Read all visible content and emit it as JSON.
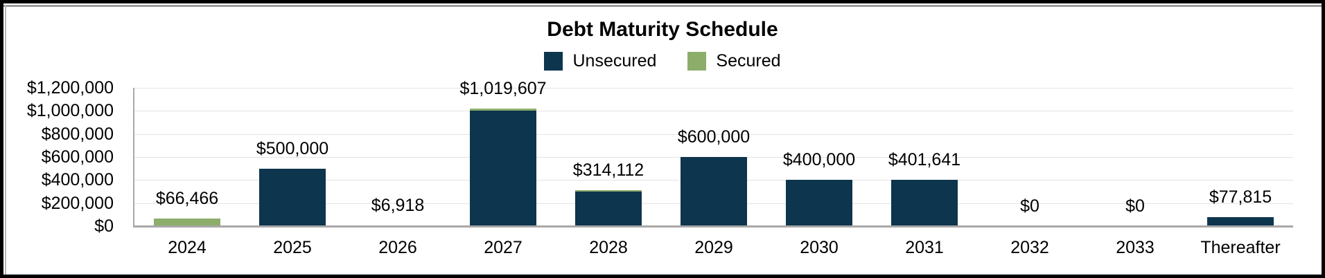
{
  "title": "Debt Maturity Schedule",
  "legend": {
    "items": [
      {
        "label": "Unsecured",
        "color": "#0d354d"
      },
      {
        "label": "Secured",
        "color": "#8dad6b"
      }
    ]
  },
  "colors": {
    "unsecured": "#0d354d",
    "secured": "#8dad6b",
    "gridline": "#e3e3e3",
    "axis": "#a8a8a8",
    "frame_border": "#000000",
    "background": "#ffffff",
    "text": "#000000"
  },
  "chart_data": {
    "type": "bar",
    "stacked": true,
    "title": "Debt Maturity Schedule",
    "categories": [
      "2024",
      "2025",
      "2026",
      "2027",
      "2028",
      "2029",
      "2030",
      "2031",
      "2032",
      "2033",
      "Thereafter"
    ],
    "series": [
      {
        "name": "Unsecured",
        "color": "#0d354d",
        "values": [
          0,
          500000,
          6918,
          1000000,
          300000,
          600000,
          400000,
          401641,
          0,
          0,
          77815
        ]
      },
      {
        "name": "Secured",
        "color": "#8dad6b",
        "values": [
          66466,
          0,
          0,
          19607,
          14112,
          0,
          0,
          0,
          0,
          0,
          0
        ]
      }
    ],
    "totals": [
      66466,
      500000,
      6918,
      1019607,
      314112,
      600000,
      400000,
      401641,
      0,
      0,
      77815
    ],
    "bar_total_labels": [
      "$66,466",
      "$500,000",
      "$6,918",
      "$1,019,607",
      "$314,112",
      "$600,000",
      "$400,000",
      "$401,641",
      "$0",
      "$0",
      "$77,815"
    ],
    "y_axis": {
      "ticks": [
        "$1,200,000",
        "$1,000,000",
        "$800,000",
        "$600,000",
        "$400,000",
        "$200,000",
        "$0"
      ],
      "min": 0,
      "max": 1200000
    },
    "grid": true,
    "legend_position": "top"
  }
}
